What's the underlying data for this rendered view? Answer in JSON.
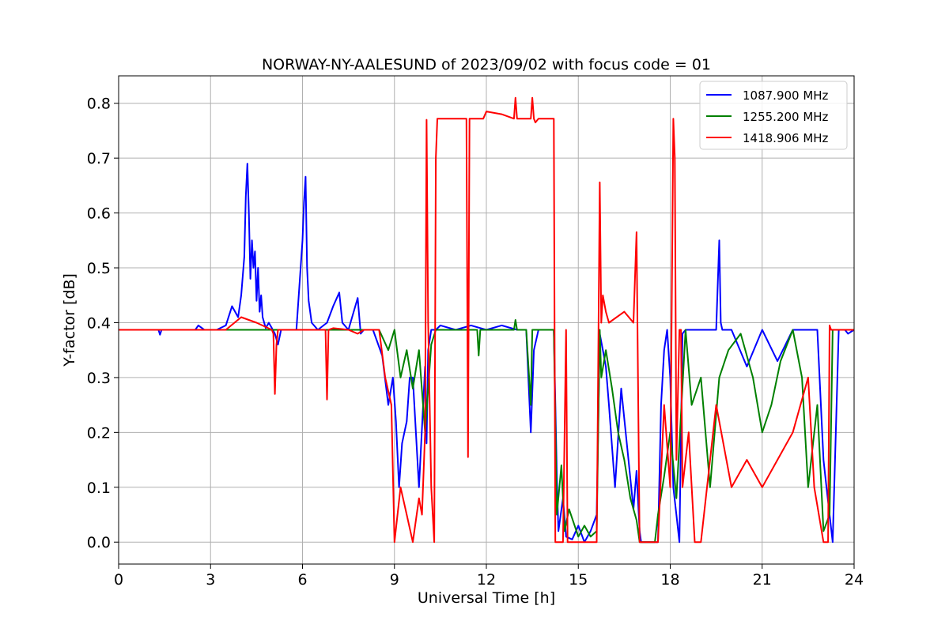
{
  "chart_data": {
    "type": "line",
    "title": "NORWAY-NY-AALESUND of 2023/09/02 with focus code = 01",
    "xlabel": "Universal Time [h]",
    "ylabel": "Y-factor [dB]",
    "xlim": [
      0,
      24
    ],
    "ylim": [
      -0.04,
      0.85
    ],
    "x_ticks": [
      0,
      3,
      6,
      9,
      12,
      15,
      18,
      21,
      24
    ],
    "x_tick_labels": [
      "0",
      "3",
      "6",
      "9",
      "12",
      "15",
      "18",
      "21",
      "24"
    ],
    "y_ticks": [
      0.0,
      0.1,
      0.2,
      0.3,
      0.4,
      0.5,
      0.6,
      0.7,
      0.8
    ],
    "y_tick_labels": [
      "0.0",
      "0.1",
      "0.2",
      "0.3",
      "0.4",
      "0.5",
      "0.6",
      "0.7",
      "0.8"
    ],
    "grid": true,
    "legend_position": "top-right",
    "series": [
      {
        "name": "1087.900 MHz",
        "color": "#0000ff",
        "x": [
          0,
          1.3,
          1.35,
          1.4,
          2.5,
          2.6,
          2.8,
          3.2,
          3.5,
          3.7,
          3.9,
          4.0,
          4.1,
          4.15,
          4.2,
          4.25,
          4.3,
          4.35,
          4.4,
          4.45,
          4.5,
          4.55,
          4.6,
          4.65,
          4.7,
          4.8,
          4.9,
          5.0,
          5.1,
          5.2,
          5.3,
          5.5,
          5.8,
          6.0,
          6.05,
          6.1,
          6.15,
          6.2,
          6.3,
          6.5,
          6.8,
          7.0,
          7.2,
          7.3,
          7.5,
          7.8,
          7.9,
          8.0,
          8.3,
          8.6,
          8.8,
          8.95,
          9.05,
          9.15,
          9.25,
          9.4,
          9.5,
          9.6,
          9.8,
          10.0,
          10.05,
          10.1,
          10.2,
          10.35,
          10.5,
          11.0,
          11.5,
          12.0,
          12.5,
          13.0,
          13.3,
          13.45,
          13.55,
          13.7,
          14.0,
          14.2,
          14.3,
          14.35,
          14.5,
          14.6,
          14.8,
          15.0,
          15.2,
          15.4,
          15.6,
          15.7,
          15.8,
          15.9,
          16.0,
          16.2,
          16.4,
          16.6,
          16.8,
          16.9,
          17.0,
          17.05,
          17.1,
          17.2,
          17.3,
          17.5,
          17.6,
          17.7,
          17.8,
          17.9,
          18.0,
          18.1,
          18.2,
          18.3,
          18.4,
          18.5,
          18.6,
          18.8,
          19.0,
          19.3,
          19.5,
          19.6,
          19.65,
          19.7,
          20.0,
          20.5,
          21.0,
          21.5,
          22.0,
          22.5,
          22.8,
          23.0,
          23.1,
          23.2,
          23.3,
          23.5,
          23.7,
          23.8,
          24.0
        ],
        "y": [
          0.387,
          0.387,
          0.378,
          0.387,
          0.387,
          0.395,
          0.387,
          0.387,
          0.395,
          0.43,
          0.41,
          0.45,
          0.52,
          0.63,
          0.69,
          0.6,
          0.48,
          0.55,
          0.5,
          0.53,
          0.44,
          0.5,
          0.42,
          0.45,
          0.41,
          0.39,
          0.4,
          0.39,
          0.38,
          0.36,
          0.387,
          0.387,
          0.387,
          0.55,
          0.62,
          0.666,
          0.5,
          0.44,
          0.4,
          0.387,
          0.4,
          0.43,
          0.455,
          0.4,
          0.387,
          0.445,
          0.38,
          0.387,
          0.387,
          0.34,
          0.25,
          0.3,
          0.22,
          0.1,
          0.18,
          0.22,
          0.3,
          0.3,
          0.1,
          0.32,
          0.18,
          0.35,
          0.387,
          0.387,
          0.395,
          0.387,
          0.395,
          0.387,
          0.395,
          0.387,
          0.387,
          0.2,
          0.35,
          0.387,
          0.387,
          0.387,
          0.12,
          0.02,
          0.08,
          0.01,
          0.005,
          0.03,
          0.0,
          0.02,
          0.05,
          0.38,
          0.35,
          0.32,
          0.25,
          0.1,
          0.28,
          0.17,
          0.06,
          0.13,
          0.02,
          0.0,
          0.0,
          0.0,
          0.0,
          0.0,
          0.0,
          0.25,
          0.35,
          0.387,
          0.3,
          0.1,
          0.05,
          0.0,
          0.38,
          0.387,
          0.387,
          0.387,
          0.387,
          0.387,
          0.387,
          0.55,
          0.4,
          0.387,
          0.387,
          0.32,
          0.387,
          0.33,
          0.387,
          0.387,
          0.387,
          0.15,
          0.1,
          0.05,
          0.0,
          0.387,
          0.387,
          0.38,
          0.387
        ]
      },
      {
        "name": "1255.200 MHz",
        "color": "#008000",
        "x": [
          0,
          3.0,
          5.0,
          6.0,
          8.5,
          8.8,
          9.0,
          9.2,
          9.4,
          9.6,
          9.8,
          10.0,
          10.2,
          10.35,
          11.0,
          11.7,
          11.75,
          11.8,
          12.5,
          12.9,
          12.95,
          13.0,
          13.3,
          13.45,
          13.5,
          13.6,
          13.7,
          14.0,
          14.2,
          14.3,
          14.45,
          14.55,
          14.7,
          15.0,
          15.2,
          15.4,
          15.6,
          15.7,
          15.75,
          15.9,
          16.1,
          16.3,
          16.5,
          16.7,
          16.9,
          17.0,
          17.5,
          17.6,
          17.8,
          18.0,
          18.2,
          18.5,
          18.7,
          19.0,
          19.3,
          19.6,
          19.9,
          20.3,
          20.7,
          21.0,
          21.3,
          21.6,
          22.0,
          22.3,
          22.5,
          22.8,
          23.0,
          23.2,
          23.3,
          24.0
        ],
        "y": [
          0.387,
          0.387,
          0.387,
          0.387,
          0.387,
          0.35,
          0.387,
          0.3,
          0.35,
          0.28,
          0.35,
          0.2,
          0.36,
          0.387,
          0.387,
          0.387,
          0.34,
          0.387,
          0.387,
          0.387,
          0.405,
          0.387,
          0.387,
          0.25,
          0.387,
          0.387,
          0.387,
          0.387,
          0.387,
          0.05,
          0.14,
          0.02,
          0.06,
          0.01,
          0.03,
          0.01,
          0.02,
          0.387,
          0.3,
          0.35,
          0.28,
          0.2,
          0.15,
          0.08,
          0.04,
          0.0,
          0.0,
          0.05,
          0.12,
          0.2,
          0.08,
          0.387,
          0.25,
          0.3,
          0.1,
          0.3,
          0.35,
          0.38,
          0.3,
          0.2,
          0.25,
          0.33,
          0.387,
          0.3,
          0.1,
          0.25,
          0.02,
          0.05,
          0.387,
          0.387
        ]
      },
      {
        "name": "1418.906 MHz",
        "color": "#ff0000",
        "x": [
          0,
          3.5,
          4.0,
          4.5,
          5.0,
          5.05,
          5.1,
          5.15,
          5.2,
          6.0,
          6.5,
          6.75,
          6.8,
          6.85,
          7.0,
          7.5,
          7.8,
          8.0,
          8.5,
          8.7,
          8.9,
          9.0,
          9.2,
          9.4,
          9.6,
          9.8,
          9.9,
          10.0,
          10.05,
          10.1,
          10.2,
          10.3,
          10.35,
          10.4,
          10.5,
          11.35,
          11.4,
          11.45,
          11.9,
          12.0,
          12.5,
          12.9,
          12.95,
          13.0,
          13.45,
          13.5,
          13.55,
          13.6,
          13.7,
          14.0,
          14.2,
          14.25,
          14.3,
          14.5,
          14.6,
          14.65,
          14.7,
          15.0,
          15.6,
          15.7,
          15.75,
          15.8,
          15.9,
          16.0,
          16.5,
          16.8,
          16.9,
          17.0,
          17.5,
          17.6,
          17.8,
          18.0,
          18.1,
          18.15,
          18.2,
          18.3,
          18.35,
          18.4,
          18.6,
          18.8,
          19.0,
          19.5,
          20.0,
          20.5,
          21.0,
          21.5,
          22.0,
          22.5,
          22.7,
          23.0,
          23.15,
          23.2,
          23.25,
          23.3,
          24.0
        ],
        "y": [
          0.387,
          0.387,
          0.41,
          0.4,
          0.387,
          0.38,
          0.27,
          0.36,
          0.387,
          0.387,
          0.387,
          0.387,
          0.26,
          0.387,
          0.39,
          0.387,
          0.38,
          0.387,
          0.387,
          0.3,
          0.25,
          0.0,
          0.1,
          0.05,
          0.0,
          0.08,
          0.05,
          0.2,
          0.77,
          0.4,
          0.1,
          0.0,
          0.7,
          0.772,
          0.772,
          0.772,
          0.155,
          0.772,
          0.772,
          0.785,
          0.78,
          0.772,
          0.81,
          0.772,
          0.772,
          0.81,
          0.772,
          0.765,
          0.772,
          0.772,
          0.772,
          0.0,
          0.0,
          0.0,
          0.387,
          0.0,
          0.0,
          0.0,
          0.0,
          0.656,
          0.4,
          0.45,
          0.42,
          0.4,
          0.42,
          0.4,
          0.565,
          0.0,
          0.0,
          0.0,
          0.25,
          0.1,
          0.772,
          0.7,
          0.15,
          0.387,
          0.387,
          0.1,
          0.2,
          0.0,
          0.0,
          0.25,
          0.1,
          0.15,
          0.1,
          0.15,
          0.2,
          0.3,
          0.1,
          0.0,
          0.0,
          0.395,
          0.387,
          0.387,
          0.387
        ]
      }
    ]
  }
}
